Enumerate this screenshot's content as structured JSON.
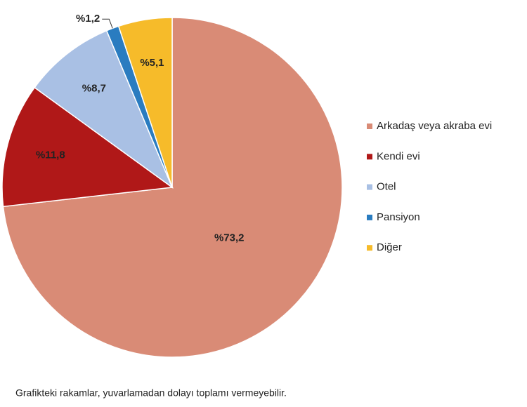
{
  "chart_data": {
    "type": "pie",
    "categories": [
      "Arkadaş veya akraba evi",
      "Kendi evi",
      "Otel",
      "Pansiyon",
      "Diğer"
    ],
    "values": [
      73.2,
      11.8,
      8.7,
      1.2,
      5.1
    ],
    "value_labels": [
      "%73,2",
      "%11,8",
      "%8,7",
      "%1,2",
      "%5,1"
    ],
    "colors": [
      "#d98b76",
      "#b01818",
      "#a9c0e4",
      "#2a7cc0",
      "#f6bb2a"
    ],
    "legend": "right"
  },
  "footnote": "Grafikteki rakamlar, yuvarlamadan dolayı toplamı vermeyebilir."
}
